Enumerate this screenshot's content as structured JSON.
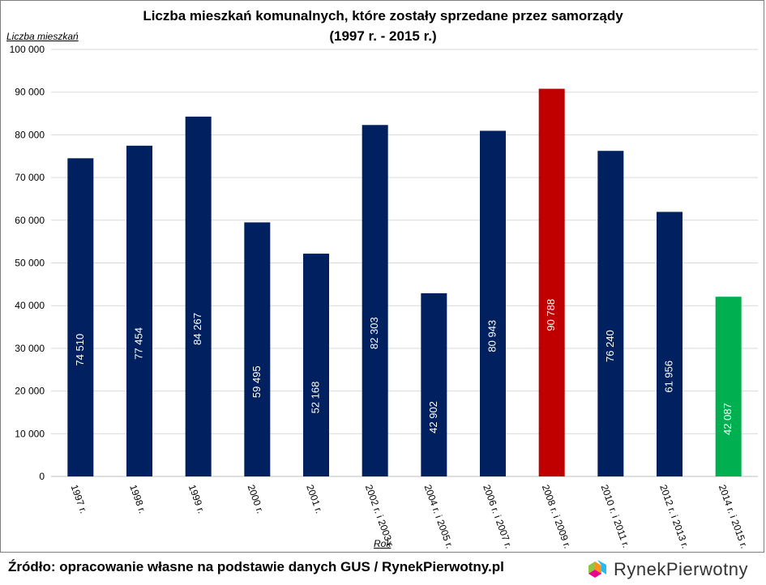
{
  "chart_data": {
    "type": "bar",
    "title": "Liczba mieszkań komunalnych, które zostały sprzedane przez samorządy",
    "subtitle": "(1997 r. - 2015 r.)",
    "ylabel": "Liczba mieszkań",
    "xlabel": "Rok",
    "ylim": [
      0,
      100000
    ],
    "yticks": [
      0,
      10000,
      20000,
      30000,
      40000,
      50000,
      60000,
      70000,
      80000,
      90000,
      100000
    ],
    "ytick_labels": [
      "0",
      "10 000",
      "20 000",
      "30 000",
      "40 000",
      "50 000",
      "60 000",
      "70 000",
      "80 000",
      "90 000",
      "100 000"
    ],
    "grid": true,
    "categories": [
      "1997 r.",
      "1998 r.",
      "1999 r.",
      "2000 r.",
      "2001 r.",
      "2002 r. i 2003 r.",
      "2004 r. i 2005 r.",
      "2006 r. i 2007 r.",
      "2008 r. i 2009 r.",
      "2010 r. i 2011 r.",
      "2012 r. i 2013 r.",
      "2014 r. i 2015 r."
    ],
    "values": [
      74510,
      77454,
      84267,
      59495,
      52168,
      82303,
      42902,
      80943,
      90788,
      76240,
      61956,
      42087
    ],
    "value_labels": [
      "74 510",
      "77 454",
      "84 267",
      "59 495",
      "52 168",
      "82 303",
      "42 902",
      "80 943",
      "90 788",
      "76 240",
      "61 956",
      "42 087"
    ],
    "bar_colors": [
      "#002060",
      "#002060",
      "#002060",
      "#002060",
      "#002060",
      "#002060",
      "#002060",
      "#002060",
      "#C00000",
      "#002060",
      "#002060",
      "#00B050"
    ]
  },
  "footer": {
    "source": "Źródło: opracowanie własne na podstawie danych GUS / RynekPierwotny.pl",
    "logo_text": "RynekPierwotny"
  }
}
